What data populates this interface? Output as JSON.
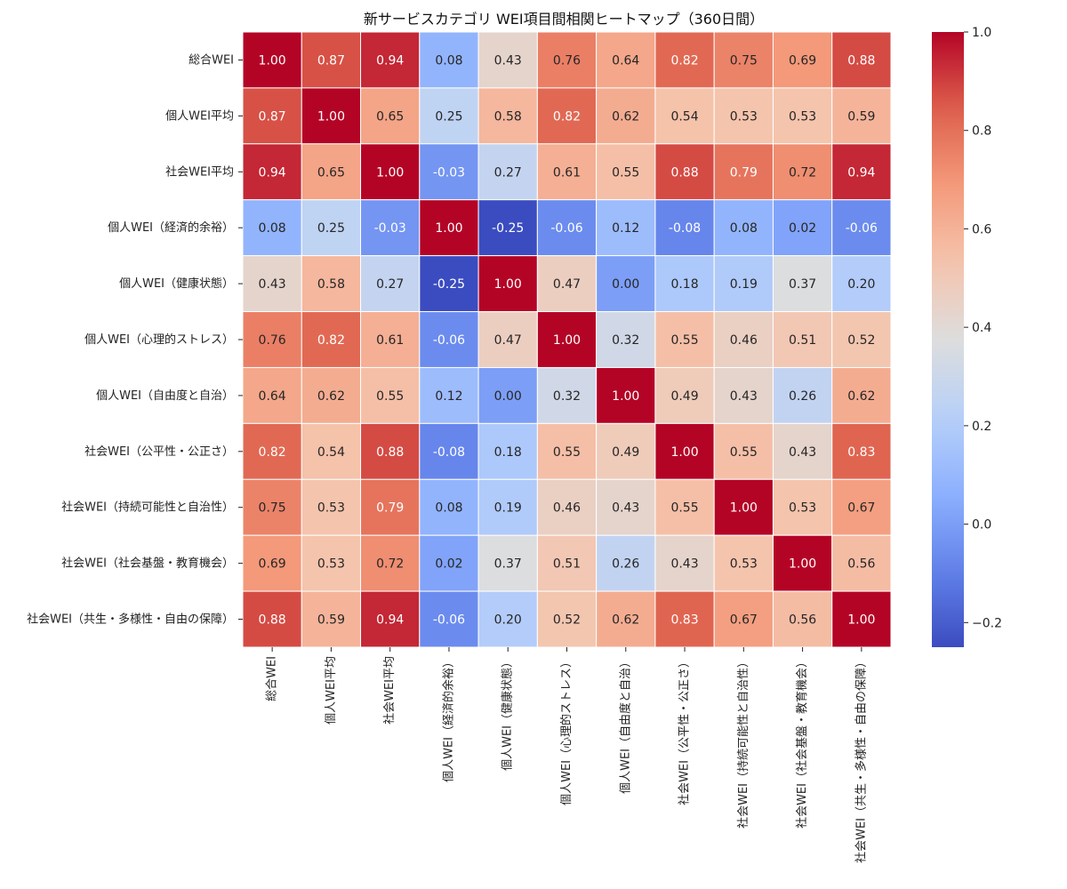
{
  "chart_data": {
    "type": "heatmap",
    "title": "新サービスカテゴリ WEI項目間相関ヒートマップ（360日間）",
    "row_labels": [
      "総合WEI",
      "個人WEI平均",
      "社会WEI平均",
      "個人WEI（経済的余裕）",
      "個人WEI（健康状態）",
      "個人WEI（心理的ストレス）",
      "個人WEI（自由度と自治）",
      "社会WEI（公平性・公正さ）",
      "社会WEI（持続可能性と自治性）",
      "社会WEI（社会基盤・教育機会）",
      "社会WEI（共生・多様性・自由の保障）"
    ],
    "col_labels": [
      "総合WEI",
      "個人WEI平均",
      "社会WEI平均",
      "個人WEI（経済的余裕）",
      "個人WEI（健康状態）",
      "個人WEI（心理的ストレス）",
      "個人WEI（自由度と自治）",
      "社会WEI（公平性・公正さ）",
      "社会WEI（持続可能性と自治性）",
      "社会WEI（社会基盤・教育機会）",
      "社会WEI（共生・多様性・自由の保障）"
    ],
    "values": [
      [
        1.0,
        0.87,
        0.94,
        0.08,
        0.43,
        0.76,
        0.64,
        0.82,
        0.75,
        0.69,
        0.88
      ],
      [
        0.87,
        1.0,
        0.65,
        0.25,
        0.58,
        0.82,
        0.62,
        0.54,
        0.53,
        0.53,
        0.59
      ],
      [
        0.94,
        0.65,
        1.0,
        -0.03,
        0.27,
        0.61,
        0.55,
        0.88,
        0.79,
        0.72,
        0.94
      ],
      [
        0.08,
        0.25,
        -0.03,
        1.0,
        -0.25,
        -0.06,
        0.12,
        -0.08,
        0.08,
        0.02,
        -0.06
      ],
      [
        0.43,
        0.58,
        0.27,
        -0.25,
        1.0,
        0.47,
        0.0,
        0.18,
        0.19,
        0.37,
        0.2
      ],
      [
        0.76,
        0.82,
        0.61,
        -0.06,
        0.47,
        1.0,
        0.32,
        0.55,
        0.46,
        0.51,
        0.52
      ],
      [
        0.64,
        0.62,
        0.55,
        0.12,
        0.0,
        0.32,
        1.0,
        0.49,
        0.43,
        0.26,
        0.62
      ],
      [
        0.82,
        0.54,
        0.88,
        -0.08,
        0.18,
        0.55,
        0.49,
        1.0,
        0.55,
        0.43,
        0.83
      ],
      [
        0.75,
        0.53,
        0.79,
        0.08,
        0.19,
        0.46,
        0.43,
        0.55,
        1.0,
        0.53,
        0.67
      ],
      [
        0.69,
        0.53,
        0.72,
        0.02,
        0.37,
        0.51,
        0.26,
        0.43,
        0.53,
        1.0,
        0.56
      ],
      [
        0.88,
        0.59,
        0.94,
        -0.06,
        0.2,
        0.52,
        0.62,
        0.83,
        0.67,
        0.56,
        1.0
      ]
    ],
    "colorbar": {
      "vmin": -0.25,
      "vmax": 1.0,
      "ticks": [
        1.0,
        0.8,
        0.6,
        0.4,
        0.2,
        0.0,
        -0.2
      ],
      "tick_labels": [
        "1.0",
        "0.8",
        "0.6",
        "0.4",
        "0.2",
        "0.0",
        "−0.2"
      ],
      "colormap": "coolwarm"
    },
    "value_format": "2 decimals",
    "grid": "white cell separators",
    "legend": "right colorbar"
  }
}
